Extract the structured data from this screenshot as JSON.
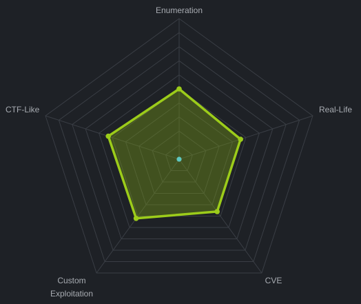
{
  "chart_data": {
    "type": "radar",
    "axes": [
      "Enumeration",
      "Real-Life",
      "CVE",
      "Custom Exploitation",
      "CTF-Like"
    ],
    "axis_label_lines": [
      [
        "Enumeration"
      ],
      [
        "Real-Life"
      ],
      [
        "CVE"
      ],
      [
        "Custom",
        "Exploitation"
      ],
      [
        "CTF-Like"
      ]
    ],
    "rings": 10,
    "max": 10,
    "series": [
      {
        "values": [
          5.0,
          4.6,
          4.6,
          5.2,
          5.3
        ],
        "color": "#9ccc1a",
        "fill": "rgba(124,160,20,0.38)"
      }
    ],
    "center_marker_color": "#5ec8c0",
    "grid_color": "#3a3e45",
    "label_color": "#a8acb2",
    "background": "#1e2126"
  }
}
